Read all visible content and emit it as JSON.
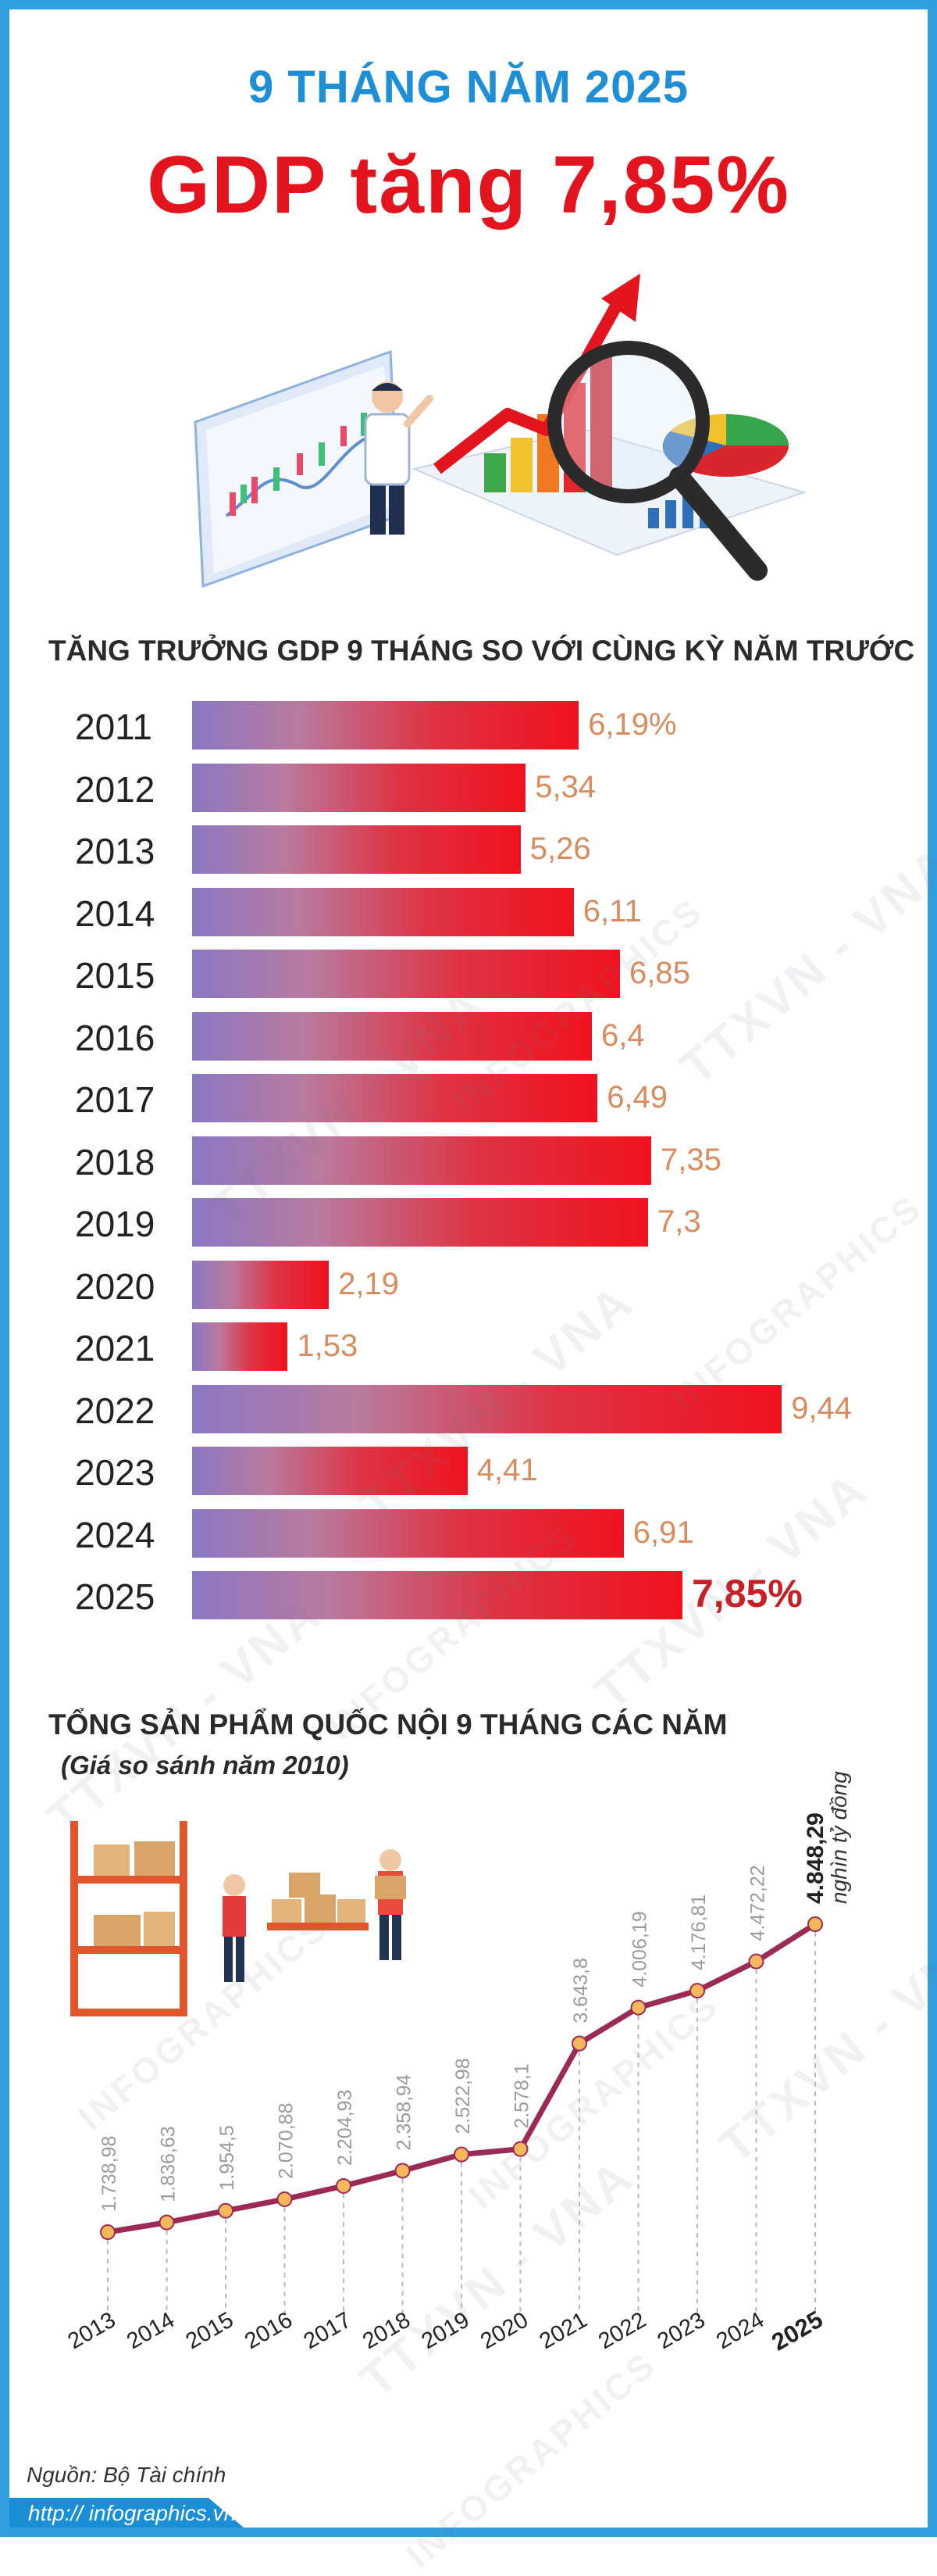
{
  "header": {
    "period": "9 THÁNG NĂM 2025",
    "headline": "GDP tăng 7,85%"
  },
  "colors": {
    "frame": "#2f9fe0",
    "period": "#1e8fd6",
    "headline": "#e3141e",
    "bar_start": "#8a78c4",
    "bar_end": "#f0121e",
    "bar_value": "#d98b5e",
    "highlight_value": "#c81e24",
    "line": "#9b2a56",
    "marker": "#f4b85a"
  },
  "illustration": {
    "icons": [
      "candlestick-board-icon",
      "analyst-person-icon",
      "rising-arrow-icon",
      "bar-chart-icon",
      "magnifier-icon",
      "pie-chart-icon"
    ]
  },
  "bar_section": {
    "title": "TĂNG TRƯỞNG GDP 9 THÁNG SO VỚI CÙNG KỲ NĂM TRƯỚC"
  },
  "line_section": {
    "title": "TỔNG SẢN PHẨM QUỐC NỘI 9 THÁNG CÁC NĂM",
    "subtitle": "(Giá so sánh năm 2010)",
    "unit": "nghìn tỷ đồng",
    "icons": [
      "warehouse-shelf-icon",
      "worker-carrying-boxes-icon",
      "box-stack-icon"
    ]
  },
  "watermarks": [
    "INFOGRAPHICS",
    "TTXVN - VNA"
  ],
  "chart_data": [
    {
      "type": "bar",
      "orientation": "horizontal",
      "title": "TĂNG TRƯỞNG GDP 9 THÁNG SO VỚI CÙNG KỲ NĂM TRƯỚC",
      "categories": [
        "2011",
        "2012",
        "2013",
        "2014",
        "2015",
        "2016",
        "2017",
        "2018",
        "2019",
        "2020",
        "2021",
        "2022",
        "2023",
        "2024",
        "2025"
      ],
      "values": [
        6.19,
        5.34,
        5.26,
        6.11,
        6.85,
        6.4,
        6.49,
        7.35,
        7.3,
        2.19,
        1.53,
        9.44,
        4.41,
        6.91,
        7.85
      ],
      "value_labels": [
        "6,19%",
        "5,34",
        "5,26",
        "6,11",
        "6,85",
        "6,4",
        "6,49",
        "7,35",
        "7,3",
        "2,19",
        "1,53",
        "9,44",
        "4,41",
        "6,91",
        "7,85%"
      ],
      "highlight": "2025",
      "xlim": [
        0,
        10
      ]
    },
    {
      "type": "line",
      "title": "TỔNG SẢN PHẨM QUỐC NỘI 9 THÁNG CÁC NĂM",
      "subtitle": "(Giá so sánh năm 2010)",
      "categories": [
        "2013",
        "2014",
        "2015",
        "2016",
        "2017",
        "2018",
        "2019",
        "2020",
        "2021",
        "2022",
        "2023",
        "2024",
        "2025"
      ],
      "values": [
        1738.98,
        1836.63,
        1954.5,
        2070.88,
        2204.93,
        2358.94,
        2522.98,
        2578.1,
        3643.8,
        4006.19,
        4176.81,
        4472.22,
        4848.29
      ],
      "value_labels": [
        "1.738,98",
        "1.836,63",
        "1.954,5",
        "2.070,88",
        "2.204,93",
        "2.358,94",
        "2.522,98",
        "2.578,1",
        "3.643,8",
        "4.006,19",
        "4.176,81",
        "4.472,22",
        "4.848,29"
      ],
      "unit": "nghìn tỷ đồng",
      "highlight": "2025"
    }
  ],
  "source": "Nguồn: Bộ Tài chính",
  "footer": {
    "url": "http:// infographics.vn"
  }
}
